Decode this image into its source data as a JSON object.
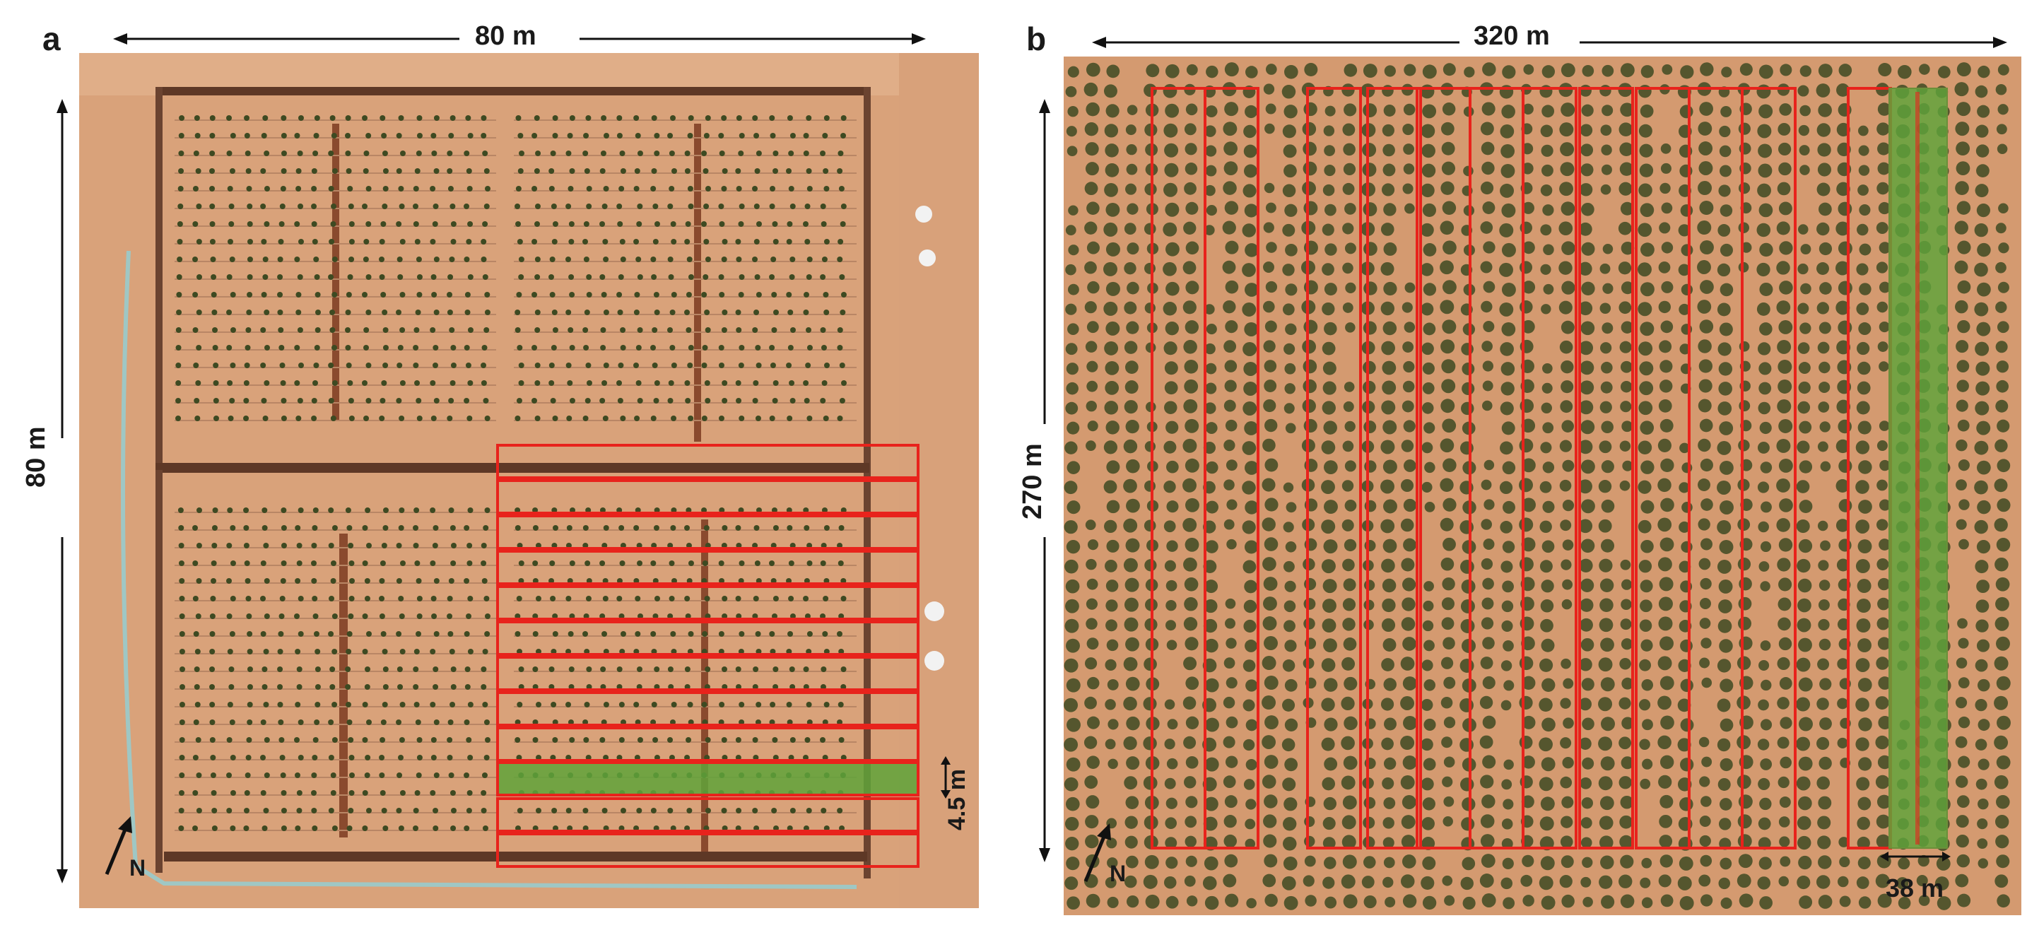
{
  "panels": [
    {
      "letter": "a",
      "width_label": "80 m",
      "height_label": "80 m",
      "spacing_label": "4.5 m",
      "north_label": "N"
    },
    {
      "letter": "b",
      "width_label": "320 m",
      "height_label": "270 m",
      "spacing_label": "38 m",
      "north_label": "N"
    }
  ],
  "colors": {
    "soil": "#d9a27a",
    "soil_dark": "#c58d66",
    "tree": "#3e4a22",
    "outline": "#e8231c",
    "highlight": "#5fa33a"
  }
}
